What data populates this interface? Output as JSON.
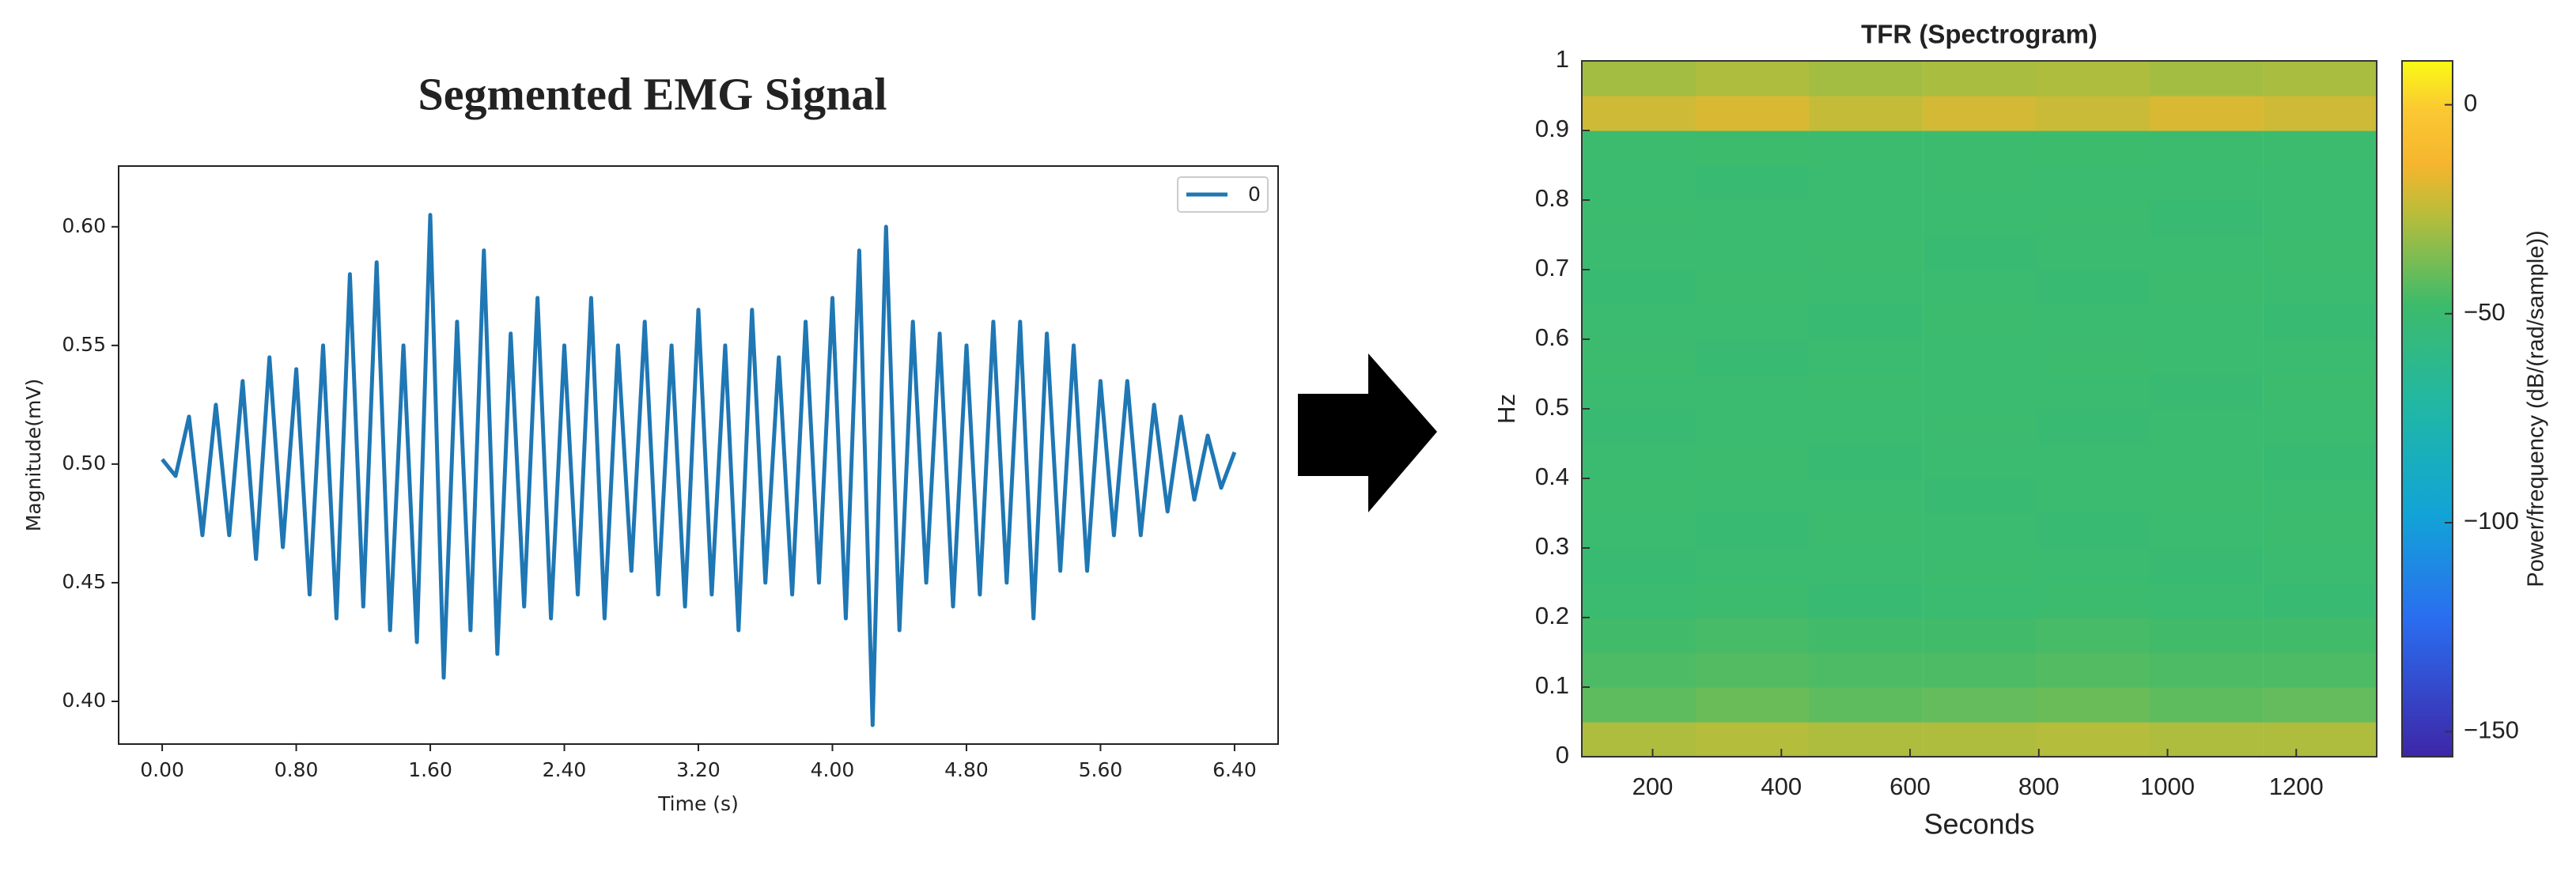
{
  "chart_data": [
    {
      "type": "line",
      "title": "Segmented EMG Signal",
      "x_label": "Time (s)",
      "y_label": "Magnitude(mV)",
      "x": [
        0,
        0.08,
        0.16,
        0.24,
        0.32,
        0.4,
        0.48,
        0.56,
        0.64,
        0.72,
        0.8,
        0.88,
        0.96,
        1.04,
        1.12,
        1.2,
        1.28,
        1.36,
        1.44,
        1.52,
        1.6,
        1.68,
        1.76,
        1.84,
        1.92,
        2,
        2.08,
        2.16,
        2.24,
        2.32,
        2.4,
        2.48,
        2.56,
        2.64,
        2.72,
        2.8,
        2.88,
        2.96,
        3.04,
        3.12,
        3.2,
        3.28,
        3.36,
        3.44,
        3.52,
        3.6,
        3.68,
        3.76,
        3.84,
        3.92,
        4,
        4.08,
        4.16,
        4.24,
        4.32,
        4.4,
        4.48,
        4.56,
        4.64,
        4.72,
        4.8,
        4.88,
        4.96,
        5.04,
        5.12,
        5.2,
        5.28,
        5.36,
        5.44,
        5.52,
        5.6,
        5.68,
        5.76,
        5.84,
        5.92,
        6,
        6.08,
        6.16,
        6.24,
        6.32,
        6.4
      ],
      "series": [
        {
          "name": "0",
          "color": "#1f77b4",
          "values": [
            0.502,
            0.495,
            0.52,
            0.47,
            0.525,
            0.47,
            0.535,
            0.46,
            0.545,
            0.465,
            0.54,
            0.445,
            0.55,
            0.435,
            0.58,
            0.44,
            0.585,
            0.43,
            0.55,
            0.425,
            0.605,
            0.41,
            0.56,
            0.43,
            0.59,
            0.42,
            0.555,
            0.44,
            0.57,
            0.435,
            0.55,
            0.445,
            0.57,
            0.435,
            0.55,
            0.455,
            0.56,
            0.445,
            0.55,
            0.44,
            0.565,
            0.445,
            0.55,
            0.43,
            0.565,
            0.45,
            0.545,
            0.445,
            0.56,
            0.45,
            0.57,
            0.435,
            0.59,
            0.39,
            0.6,
            0.43,
            0.56,
            0.45,
            0.555,
            0.44,
            0.55,
            0.445,
            0.56,
            0.45,
            0.56,
            0.435,
            0.555,
            0.455,
            0.55,
            0.455,
            0.535,
            0.47,
            0.535,
            0.47,
            0.525,
            0.48,
            0.52,
            0.485,
            0.512,
            0.49,
            0.505
          ]
        }
      ],
      "xlim": [
        -0.26,
        6.66
      ],
      "ylim": [
        0.382,
        0.6256
      ],
      "xticks": [
        {
          "value": 0,
          "label": "0.00"
        },
        {
          "value": 0.8,
          "label": "0.80"
        },
        {
          "value": 1.6,
          "label": "1.60"
        },
        {
          "value": 2.4,
          "label": "2.40"
        },
        {
          "value": 3.2,
          "label": "3.20"
        },
        {
          "value": 4,
          "label": "4.00"
        },
        {
          "value": 4.8,
          "label": "4.80"
        },
        {
          "value": 5.6,
          "label": "5.60"
        },
        {
          "value": 6.4,
          "label": "6.40"
        }
      ],
      "yticks": [
        {
          "value": 0.4,
          "label": "0.40"
        },
        {
          "value": 0.45,
          "label": "0.45"
        },
        {
          "value": 0.5,
          "label": "0.50"
        },
        {
          "value": 0.55,
          "label": "0.55"
        },
        {
          "value": 0.6,
          "label": "0.60"
        }
      ],
      "legend": "upper right"
    },
    {
      "type": "heatmap",
      "title": "TFR (Spectrogram)",
      "x_label": "Seconds",
      "y_label": "Hz",
      "colorbar_label": "Power/frequency (dB/(rad/sample))",
      "colormap": "parula",
      "x": [
        178,
        355,
        531,
        708,
        884,
        1060,
        1237
      ],
      "y": [
        0.025,
        0.075,
        0.125,
        0.175,
        0.225,
        0.275,
        0.325,
        0.375,
        0.425,
        0.475,
        0.525,
        0.575,
        0.625,
        0.675,
        0.725,
        0.775,
        0.825,
        0.875,
        0.925,
        0.975
      ],
      "values": [
        [
          -28,
          -27,
          -28,
          -28,
          -27,
          -28,
          -28
        ],
        [
          -42,
          -40,
          -42,
          -41,
          -40,
          -42,
          -41
        ],
        [
          -45,
          -44,
          -45,
          -45,
          -44,
          -45,
          -45
        ],
        [
          -47,
          -46,
          -47,
          -47,
          -46,
          -47,
          -47
        ],
        [
          -50,
          -49,
          -51,
          -50,
          -49,
          -50,
          -51
        ],
        [
          -51,
          -50,
          -50,
          -49,
          -50,
          -51,
          -50
        ],
        [
          -50,
          -51,
          -49,
          -50,
          -51,
          -50,
          -49
        ],
        [
          -49,
          -50,
          -50,
          -51,
          -50,
          -49,
          -50
        ],
        [
          -50,
          -49,
          -51,
          -50,
          -50,
          -50,
          -51
        ],
        [
          -51,
          -50,
          -50,
          -49,
          -51,
          -50,
          -50
        ],
        [
          -50,
          -50,
          -49,
          -50,
          -50,
          -51,
          -49
        ],
        [
          -49,
          -51,
          -50,
          -50,
          -49,
          -50,
          -50
        ],
        [
          -50,
          -50,
          -51,
          -49,
          -50,
          -50,
          -51
        ],
        [
          -51,
          -49,
          -50,
          -50,
          -51,
          -49,
          -50
        ],
        [
          -50,
          -50,
          -49,
          -51,
          -50,
          -50,
          -49
        ],
        [
          -49,
          -50,
          -50,
          -50,
          -49,
          -51,
          -50
        ],
        [
          -50,
          -51,
          -50,
          -49,
          -50,
          -50,
          -50
        ],
        [
          -49,
          -48,
          -49,
          -49,
          -48,
          -49,
          -49
        ],
        [
          -22,
          -20,
          -24,
          -21,
          -23,
          -20,
          -22
        ],
        [
          -30,
          -28,
          -30,
          -29,
          -28,
          -30,
          -29
        ]
      ],
      "xlim": [
        90,
        1325
      ],
      "ylim": [
        0,
        1
      ],
      "clim": [
        -156,
        10.5
      ],
      "xticks": [
        200,
        400,
        600,
        800,
        1000,
        1200
      ],
      "yticks": [
        0,
        0.1,
        0.2,
        0.3,
        0.4,
        0.5,
        0.6,
        0.7,
        0.8,
        0.9,
        1
      ],
      "cticks": [
        0,
        {
          "value": -50,
          "label": "−50"
        },
        {
          "value": -100,
          "label": "−100"
        },
        {
          "value": -150,
          "label": "−150"
        }
      ]
    }
  ]
}
